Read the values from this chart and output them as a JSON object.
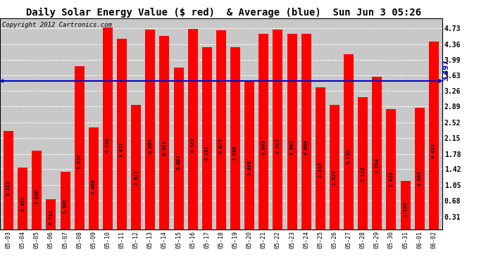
{
  "title": "Daily Solar Energy Value ($ red)  & Average (blue)  Sun Jun 3 05:26",
  "copyright": "Copyright 2012 Cartronics.com",
  "categories": [
    "05-03",
    "05-04",
    "05-05",
    "05-06",
    "05-07",
    "05-08",
    "05-09",
    "05-10",
    "05-11",
    "05-12",
    "05-13",
    "05-14",
    "05-15",
    "05-16",
    "05-17",
    "05-18",
    "05-19",
    "05-20",
    "05-21",
    "05-22",
    "05-23",
    "05-24",
    "05-25",
    "05-26",
    "05-27",
    "05-28",
    "05-29",
    "05-30",
    "05-31",
    "06-01",
    "06-02"
  ],
  "values": [
    2.311,
    1.461,
    1.848,
    0.714,
    1.365,
    3.834,
    2.4,
    4.75,
    4.477,
    2.927,
    4.695,
    4.557,
    3.801,
    4.723,
    4.281,
    4.677,
    4.29,
    3.468,
    4.602,
    4.707,
    4.602,
    4.608,
    3.343,
    2.927,
    4.119,
    3.118,
    3.594,
    2.828,
    1.143,
    2.865,
    4.425
  ],
  "average": 3.497,
  "bar_color": "#FF0000",
  "avg_line_color": "#0000CC",
  "background_color": "#FFFFFF",
  "plot_bg_color": "#C8C8C8",
  "grid_color": "#FFFFFF",
  "ylim_min": 0.0,
  "ylim_max": 4.96,
  "yticks": [
    0.31,
    0.68,
    1.05,
    1.42,
    1.78,
    2.15,
    2.52,
    2.89,
    3.26,
    3.63,
    3.99,
    4.36,
    4.73
  ],
  "title_fontsize": 10,
  "copyright_fontsize": 6.5,
  "avg_label": "3.497",
  "avg_label_fontsize": 7,
  "value_fontsize": 5.2,
  "tick_fontsize": 7,
  "xtick_fontsize": 6
}
